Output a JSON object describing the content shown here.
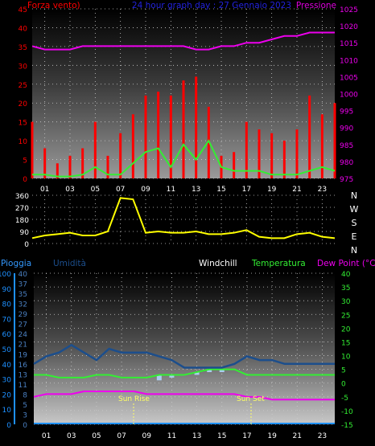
{
  "header": {
    "wind_title": "Forza vento)",
    "center_title": "24 hour graph day : 27 Gennaio 2023",
    "pressure_title": "Pressione"
  },
  "bottom_header": {
    "rain_label": "Pioggia",
    "humidity_label": "Umidità",
    "windchill_label": "Windchill",
    "temperature_label": "Temperatura",
    "dewpoint_label": "Dew Point (°C)"
  },
  "annotations": {
    "sunrise": "Sun Rise",
    "sunset": "Sun Set"
  },
  "colors": {
    "wind": "#ff0000",
    "wind_avg": "#33ee33",
    "pressure": "#ee00ee",
    "direction": "#ffff00",
    "humidity": "#1c4e8c",
    "windchill": "#aaccee",
    "temperature": "#33ee33",
    "dewpoint": "#ee00ee",
    "rain": "#1e90ff"
  },
  "x_ticks": [
    "01",
    "03",
    "05",
    "07",
    "09",
    "11",
    "13",
    "15",
    "17",
    "19",
    "21",
    "23"
  ],
  "chart_data": [
    {
      "type": "line",
      "name": "wind-pressure",
      "x": [
        0,
        1,
        2,
        3,
        4,
        5,
        6,
        7,
        8,
        9,
        10,
        11,
        12,
        13,
        14,
        15,
        16,
        17,
        18,
        19,
        20,
        21,
        22,
        23,
        24
      ],
      "wind_left_ticks": [
        "0",
        "5",
        "10",
        "15",
        "20",
        "25",
        "30",
        "35",
        "40",
        "45"
      ],
      "wind_ylim": [
        0,
        45
      ],
      "pressure_right_ticks": [
        "975",
        "980",
        "985",
        "990",
        "995",
        "1000",
        "1005",
        "1010",
        "1015",
        "1020",
        "1025"
      ],
      "pressure_ylim": [
        975,
        1025
      ],
      "series": [
        {
          "key": "pressure",
          "values": [
            1014,
            1013,
            1013,
            1013,
            1014,
            1014,
            1014,
            1014,
            1014,
            1014,
            1014,
            1014,
            1014,
            1013,
            1013,
            1014,
            1014,
            1015,
            1015,
            1016,
            1017,
            1017,
            1018,
            1018,
            1018
          ]
        },
        {
          "key": "wind_avg",
          "values": [
            1,
            1,
            0.5,
            0.5,
            1,
            3,
            1,
            1,
            4,
            7,
            8,
            3,
            9,
            5,
            10,
            3,
            2,
            2,
            2,
            1,
            1,
            1,
            2,
            3,
            2
          ]
        },
        {
          "key": "wind_gust",
          "values": [
            15,
            8,
            4,
            6,
            8,
            15,
            6,
            12,
            17,
            22,
            23,
            22,
            26,
            27,
            19,
            6,
            7,
            15,
            13,
            12,
            10,
            13,
            22,
            17,
            20
          ]
        }
      ]
    },
    {
      "type": "line",
      "name": "wind-direction",
      "x": [
        0,
        1,
        2,
        3,
        4,
        5,
        6,
        7,
        8,
        9,
        10,
        11,
        12,
        13,
        14,
        15,
        16,
        17,
        18,
        19,
        20,
        21,
        22,
        23,
        24
      ],
      "left_ticks": [
        "0",
        "90",
        "180",
        "270",
        "360"
      ],
      "right_ticks": [
        "N",
        "W",
        "S",
        "E",
        "N"
      ],
      "ylim": [
        0,
        360
      ],
      "series": [
        {
          "key": "direction",
          "values": [
            40,
            60,
            70,
            80,
            60,
            60,
            90,
            340,
            330,
            80,
            90,
            80,
            80,
            90,
            70,
            70,
            80,
            100,
            50,
            40,
            40,
            70,
            80,
            50,
            40
          ]
        }
      ]
    },
    {
      "type": "line",
      "name": "humidity-temperature",
      "x": [
        0,
        1,
        2,
        3,
        4,
        5,
        6,
        7,
        8,
        9,
        10,
        11,
        12,
        13,
        14,
        15,
        16,
        17,
        18,
        19,
        20,
        21,
        22,
        23,
        24
      ],
      "rain_ticks": [
        "0",
        "10",
        "20",
        "30",
        "40",
        "50",
        "60",
        "70",
        "80",
        "90",
        "100"
      ],
      "humidity_ticks": [
        "0",
        "3",
        "5",
        "8",
        "11",
        "13",
        "16",
        "19",
        "21",
        "24",
        "27",
        "29",
        "32",
        "35",
        "37",
        "40"
      ],
      "temp_ticks": [
        "-15",
        "-10",
        "-5",
        "0",
        "5",
        "10",
        "15",
        "20",
        "25",
        "30",
        "35",
        "40"
      ],
      "temp_ylim": [
        -15,
        40
      ],
      "series": [
        {
          "key": "humidity",
          "values": [
            16,
            18,
            19,
            21,
            19,
            17,
            20,
            19,
            19,
            19,
            18,
            17,
            15,
            15,
            15,
            15,
            16,
            18,
            17,
            17,
            16,
            16,
            16,
            16,
            16
          ]
        },
        {
          "key": "windchill",
          "values": [
            null,
            null,
            null,
            null,
            null,
            null,
            null,
            2,
            2,
            2,
            1,
            2,
            3,
            3,
            4,
            4,
            5,
            null,
            null,
            null,
            null,
            null,
            null,
            null,
            null
          ]
        },
        {
          "key": "temperature",
          "values": [
            3,
            3,
            2,
            2,
            2,
            3,
            3,
            2,
            2,
            2,
            3,
            3,
            3,
            4,
            5,
            5,
            5,
            3,
            3,
            3,
            3,
            3,
            3,
            3,
            3
          ]
        },
        {
          "key": "dewpoint",
          "values": [
            -5,
            -4,
            -4,
            -4,
            -3,
            -3,
            -3,
            -3,
            -3,
            -4,
            -4,
            -4,
            -4,
            -4,
            -4,
            -4,
            -4,
            -5,
            -5,
            -6,
            -6,
            -6,
            -6,
            -6,
            -6
          ]
        },
        {
          "key": "rain",
          "values": [
            0,
            0,
            0,
            0,
            0,
            0,
            0,
            0,
            0,
            0,
            0,
            0,
            0,
            0,
            0,
            0,
            0,
            0,
            0,
            0,
            0,
            0,
            0,
            0,
            0
          ]
        }
      ]
    }
  ]
}
